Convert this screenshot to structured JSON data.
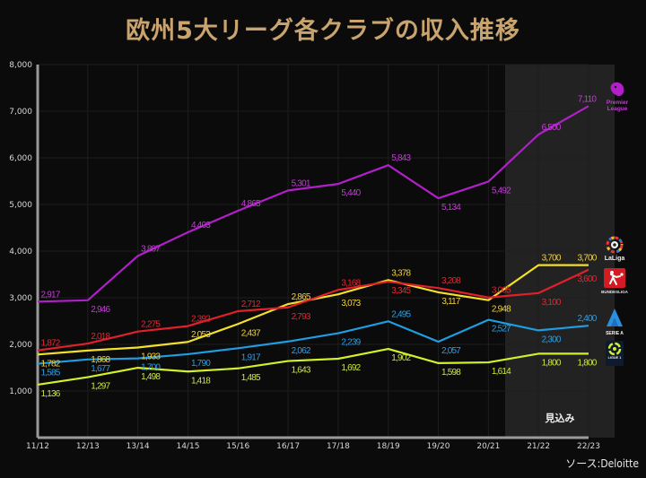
{
  "chart_data": {
    "type": "line",
    "title": "欧州5大リーグ各クラブの収入推移",
    "xlabel": "",
    "ylabel": "",
    "categories": [
      "11/12",
      "12/13",
      "13/14",
      "14/15",
      "15/16",
      "16/17",
      "17/18",
      "18/19",
      "19/20",
      "20/21",
      "21/22",
      "22/23"
    ],
    "ylim": [
      0,
      8000
    ],
    "yticks": [
      1000,
      2000,
      3000,
      4000,
      5000,
      6000,
      7000,
      8000
    ],
    "ytick_labels": [
      "1,000",
      "2,000",
      "3,000",
      "4,000",
      "5,000",
      "6,000",
      "7,000",
      "8,000"
    ],
    "grid": true,
    "forecast_region": {
      "start": "21/22",
      "end": "22/23",
      "label": "見込み"
    },
    "legend_placement": "right (league logos at line ends)",
    "series": [
      {
        "name": "Premier League",
        "color": "#b020c8",
        "label_color": "#c43ad8",
        "values": [
          2917,
          2946,
          3897,
          4403,
          4865,
          5301,
          5440,
          5843,
          5134,
          5492,
          6500,
          7110
        ],
        "labels": [
          "2,917",
          "2,946",
          "3,897",
          "4,403",
          "4,865",
          "5,301",
          "5,440",
          "5,843",
          "5,134",
          "5,492",
          "6,500",
          "7,110"
        ],
        "label_pos": [
          "above",
          "below",
          "above",
          "above",
          "above",
          "above",
          "below",
          "above",
          "below",
          "below",
          "above",
          "above"
        ]
      },
      {
        "name": "LaLiga",
        "color": "#f3e02a",
        "label_color": "#f2d23a",
        "values": [
          1782,
          1868,
          1933,
          2053,
          2437,
          2865,
          3073,
          3378,
          3117,
          2948,
          3700,
          3700
        ],
        "labels": [
          "1,782",
          "1,868",
          "1,933",
          "2,053",
          "2,437",
          "2,865",
          "3,073",
          "3,378",
          "3,117",
          "2,948",
          "3,700",
          "3,700"
        ],
        "label_pos": [
          "below",
          "below",
          "below",
          "above",
          "below",
          "above",
          "below",
          "above",
          "below",
          "below",
          "above",
          "above"
        ]
      },
      {
        "name": "Bundesliga",
        "color": "#e0202a",
        "label_color": "#e8242e",
        "values": [
          1872,
          2018,
          2275,
          2392,
          2712,
          2793,
          3168,
          3345,
          3208,
          3005,
          3100,
          3600
        ],
        "labels": [
          "1,872",
          "2,018",
          "2,275",
          "2,392",
          "2,712",
          "2,793",
          "3,168",
          "3,345",
          "3,208",
          "3,005",
          "3,100",
          "3,600"
        ],
        "label_pos": [
          "above",
          "above",
          "above",
          "above",
          "above",
          "below",
          "above",
          "below",
          "above",
          "above",
          "below",
          "below"
        ]
      },
      {
        "name": "Serie A",
        "color": "#1f9de0",
        "label_color": "#2a9fe6",
        "values": [
          1585,
          1677,
          1700,
          1790,
          1917,
          2062,
          2239,
          2495,
          2057,
          2527,
          2300,
          2400
        ],
        "labels": [
          "1,585",
          "1,677",
          "1,700",
          "1,790",
          "1,917",
          "2,062",
          "2,239",
          "2,495",
          "2,057",
          "2,527",
          "2,300",
          "2,400"
        ],
        "label_pos": [
          "below",
          "below",
          "below",
          "below",
          "below",
          "below",
          "below",
          "above",
          "below",
          "below",
          "below",
          "above"
        ]
      },
      {
        "name": "Ligue 1",
        "color": "#d4f02a",
        "label_color": "#cfe83a",
        "values": [
          1136,
          1297,
          1498,
          1418,
          1485,
          1643,
          1692,
          1902,
          1598,
          1614,
          1800,
          1800
        ],
        "labels": [
          "1,136",
          "1,297",
          "1,498",
          "1,418",
          "1,485",
          "1,643",
          "1,692",
          "1,902",
          "1,598",
          "1,614",
          "1,800",
          "1,800"
        ],
        "label_pos": [
          "below",
          "below",
          "below",
          "below",
          "below",
          "below",
          "below",
          "below",
          "below",
          "below",
          "below",
          "below"
        ]
      }
    ],
    "source": "ソース:Deloitte"
  },
  "logos": {
    "premier_league": [
      "Premier",
      "League"
    ],
    "laliga": "LaLiga",
    "bundesliga": "BUNDESLIGA",
    "serie_a": "SERIE A",
    "ligue1": "LIGUE 1"
  }
}
